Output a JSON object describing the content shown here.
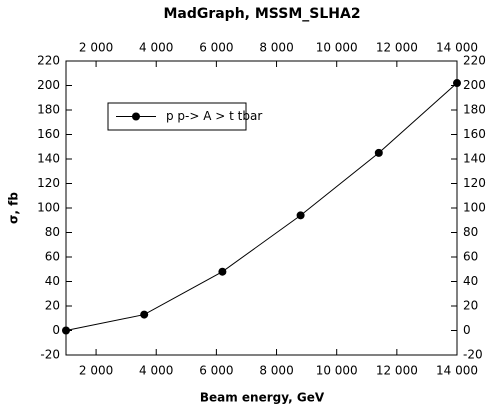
{
  "chart_data": {
    "type": "line",
    "title": "MadGraph, MSSM_SLHA2",
    "x_label": "Beam energy, GeV",
    "y_label": "σ, fb",
    "x": [
      1000,
      3600,
      6200,
      8800,
      11400,
      14000
    ],
    "series": [
      {
        "name": "p p-> A > t tbar",
        "color": "#000000",
        "values": [
          0,
          13,
          48,
          94,
          145,
          202
        ]
      }
    ],
    "xlim": [
      1000,
      14000
    ],
    "xticks": [
      {
        "value": 2000,
        "label": "2 000"
      },
      {
        "value": 4000,
        "label": "4 000"
      },
      {
        "value": 6000,
        "label": "6 000"
      },
      {
        "value": 8000,
        "label": "8 000"
      },
      {
        "value": 10000,
        "label": "10 000"
      },
      {
        "value": 12000,
        "label": "12 000"
      },
      {
        "value": 14000,
        "label": "14 000"
      }
    ],
    "ylim": [
      -20,
      220
    ],
    "yticks": [
      -20,
      0,
      20,
      40,
      60,
      80,
      100,
      120,
      140,
      160,
      180,
      200,
      220
    ],
    "legend": "upper left"
  }
}
